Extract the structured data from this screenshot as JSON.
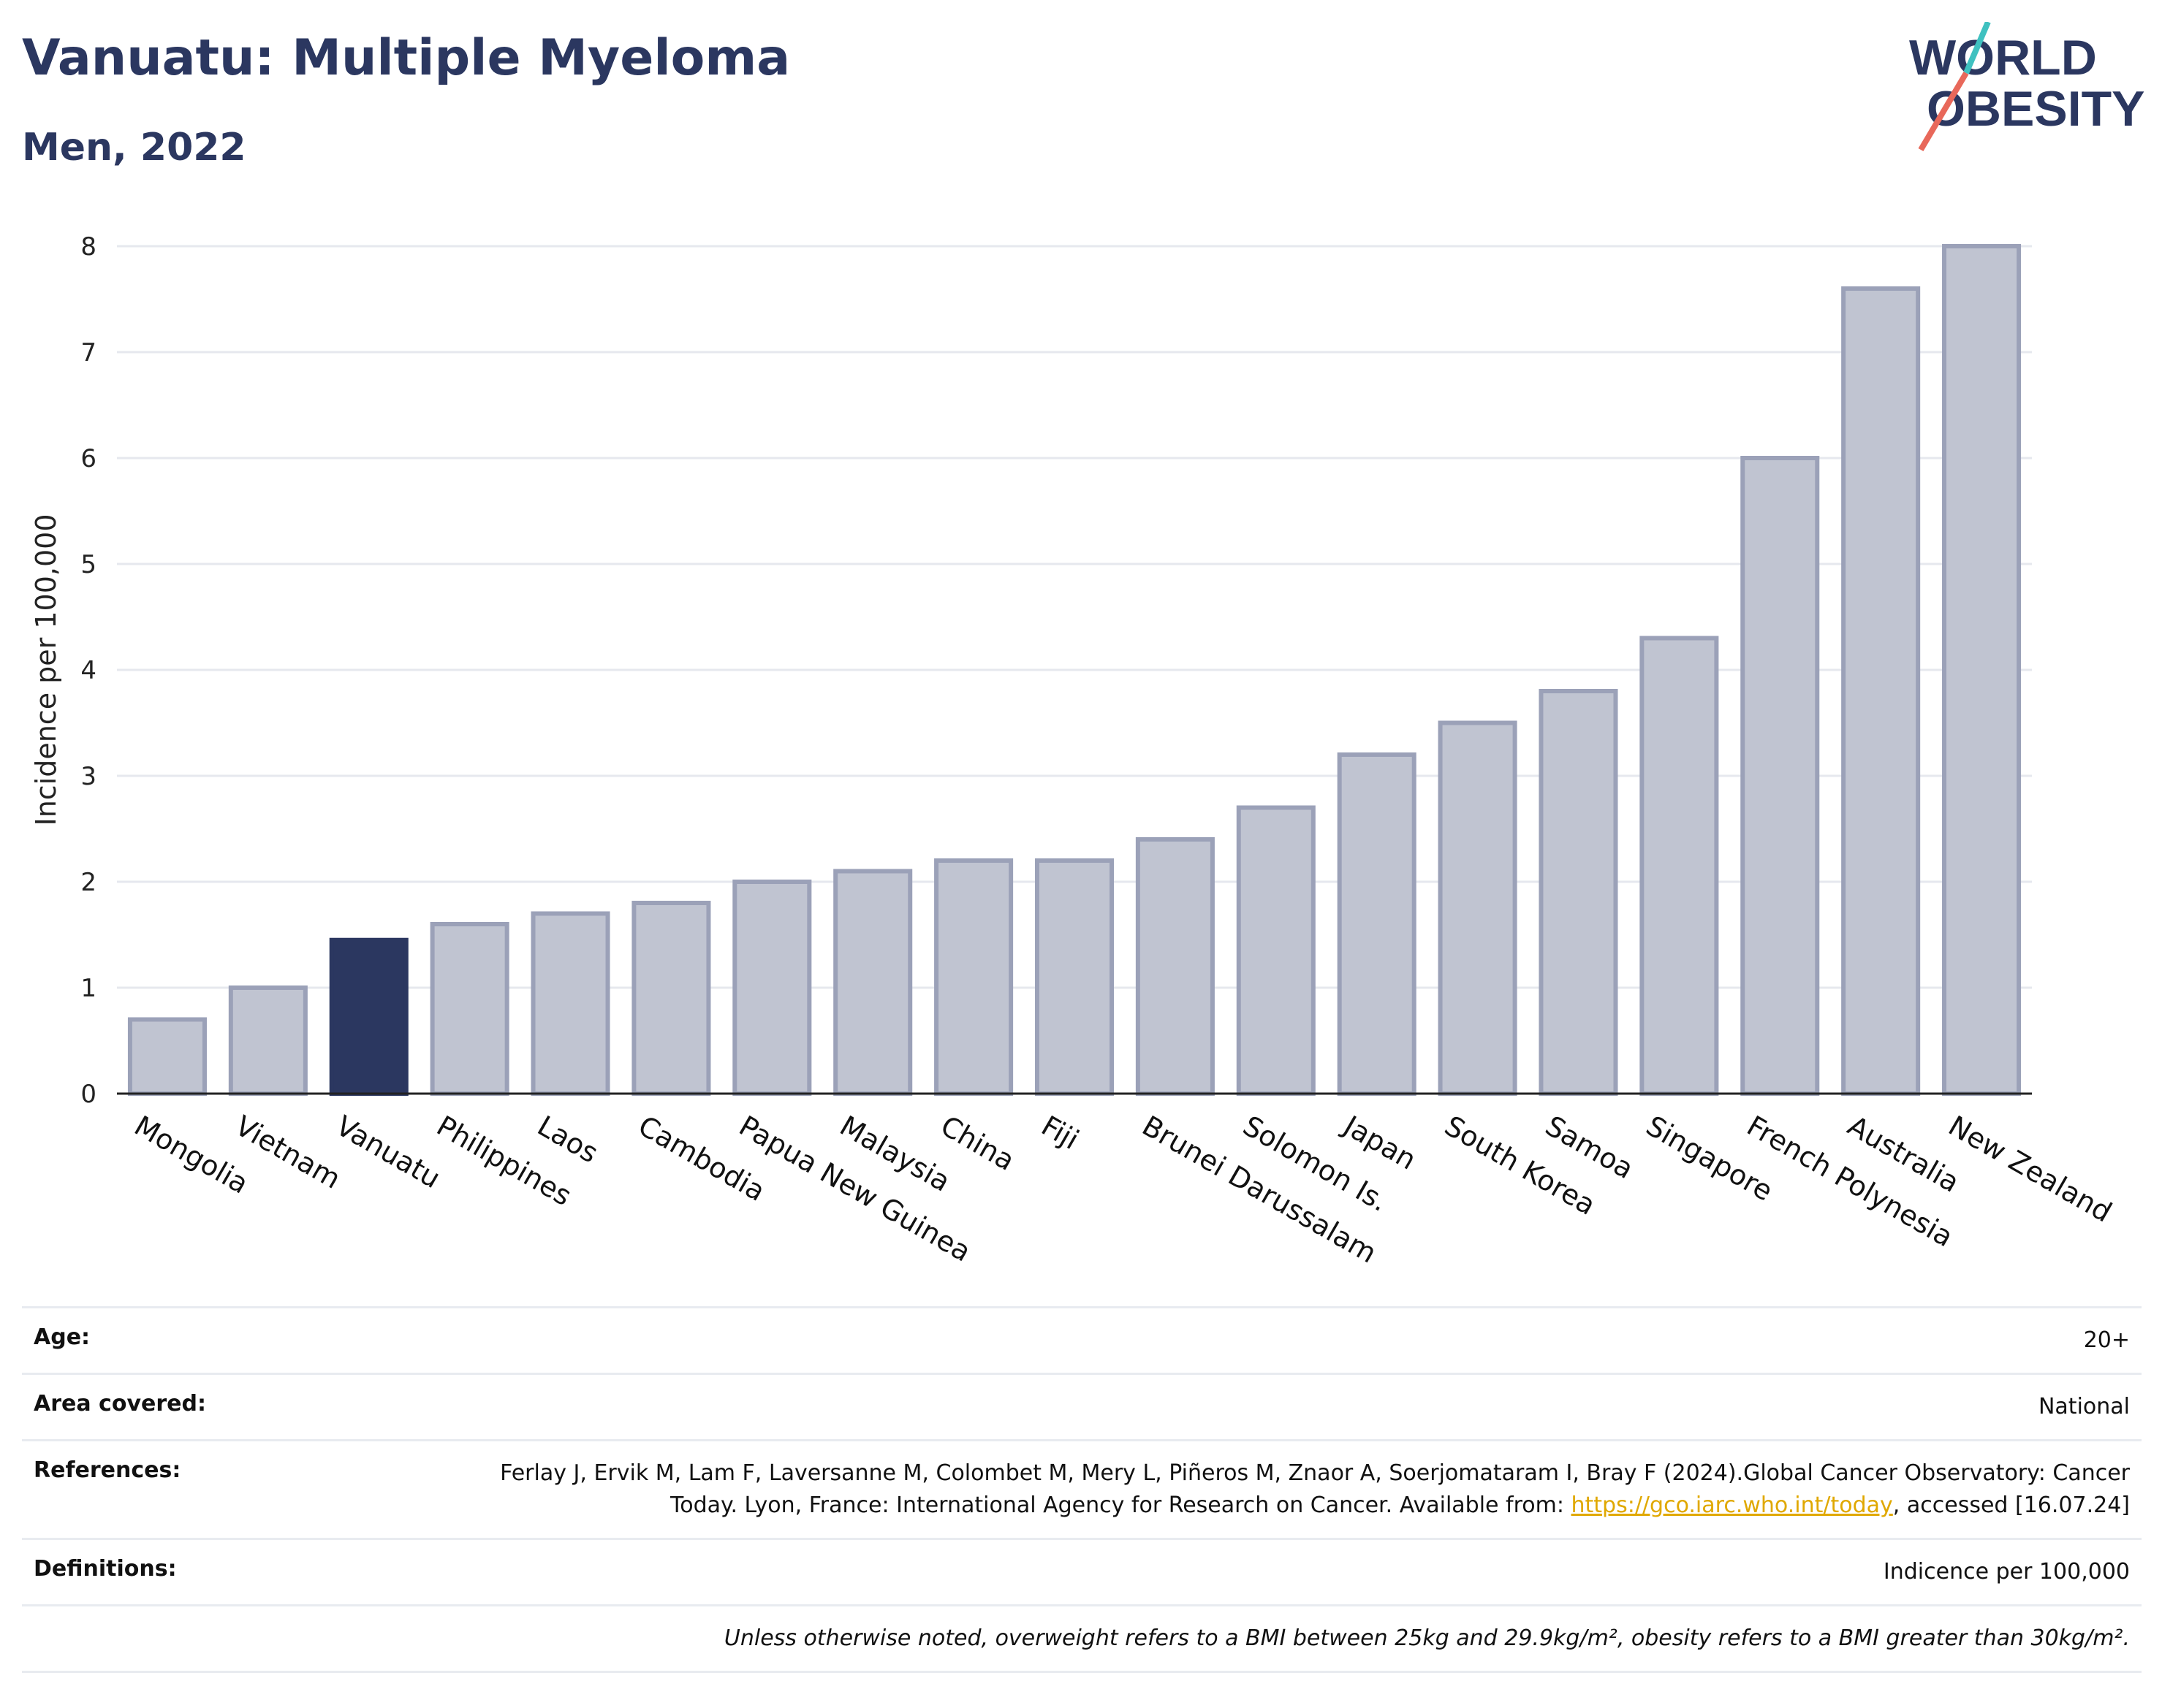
{
  "header": {
    "title": "Vanuatu: Multiple Myeloma",
    "subtitle": "Men, 2022"
  },
  "logo": {
    "line1": "WORLD",
    "line2": "OBESITY",
    "text_color": "#2b3760",
    "slash_colors": [
      "#3fc1c0",
      "#e8685a"
    ]
  },
  "chart_data": {
    "type": "bar",
    "ylabel": "Incidence per 100,000",
    "ylim": [
      0,
      8
    ],
    "yticks": [
      0,
      1,
      2,
      3,
      4,
      5,
      6,
      7,
      8
    ],
    "grid": true,
    "highlight": "Vanuatu",
    "colors": {
      "bar": "#c0c4d1",
      "bar_border": "#9ba1b8",
      "highlight": "#2b3760"
    },
    "categories": [
      "Mongolia",
      "Vietnam",
      "Vanuatu",
      "Philippines",
      "Laos",
      "Cambodia",
      "Papua New Guinea",
      "Malaysia",
      "China",
      "Fiji",
      "Brunei Darussalam",
      "Solomon Is.",
      "Japan",
      "South Korea",
      "Samoa",
      "Singapore",
      "French Polynesia",
      "Australia",
      "New Zealand"
    ],
    "values": [
      0.7,
      1.0,
      1.45,
      1.6,
      1.7,
      1.8,
      2.0,
      2.1,
      2.2,
      2.2,
      2.4,
      2.7,
      3.2,
      3.5,
      3.8,
      4.3,
      6.0,
      7.6,
      8.0
    ]
  },
  "info": {
    "age_label": "Age:",
    "age_value": "20+",
    "area_label": "Area covered:",
    "area_value": "National",
    "references_label": "References:",
    "references_text_1": "Ferlay J, Ervik M, Lam F, Laversanne M, Colombet M, Mery L, Piñeros M, Znaor A, Soerjomataram I, Bray F (2024).Global Cancer Observatory: Cancer Today. Lyon, France: International Agency for Research on Cancer. Available from: ",
    "references_link": "https://gco.iarc.who.int/today",
    "references_text_2": ", accessed [16.07.24]",
    "definitions_label": "Definitions:",
    "definitions_value": "Indicence per 100,000",
    "note": "Unless otherwise noted, overweight refers to a BMI between 25kg and 29.9kg/m², obesity refers to a BMI greater than 30kg/m²."
  }
}
